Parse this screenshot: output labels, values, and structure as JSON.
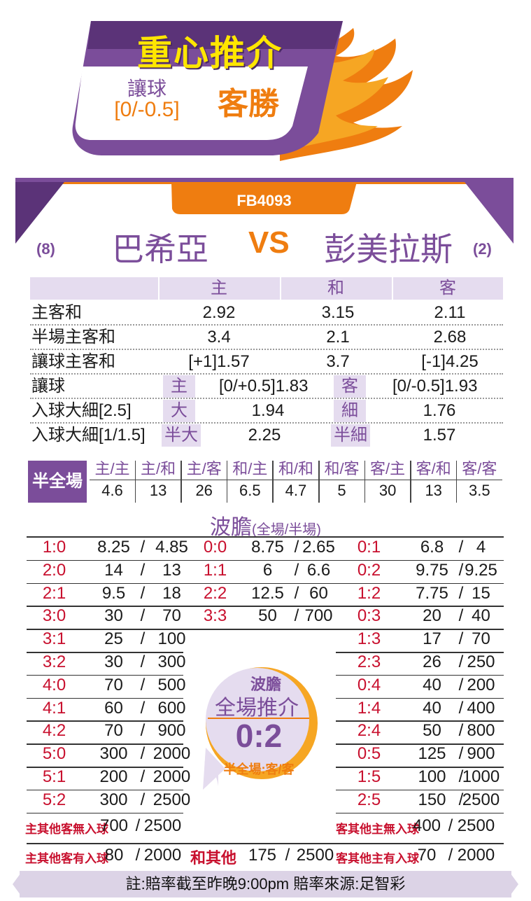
{
  "banner": {
    "title": "重心推介",
    "handicap_label": "讓球",
    "handicap_value": "[0/-0.5]",
    "pick": "客勝"
  },
  "match": {
    "code": "FB4093",
    "home_rank": "(8)",
    "home_team": "巴希亞",
    "vs": "VS",
    "away_team": "彭美拉斯",
    "away_rank": "(2)"
  },
  "odds": {
    "headers": [
      "主",
      "和",
      "客"
    ],
    "rows": [
      {
        "label": "主客和",
        "home": "2.92",
        "draw": "3.15",
        "away": "2.11"
      },
      {
        "label": "半場主客和",
        "home": "3.4",
        "draw": "2.1",
        "away": "2.68"
      },
      {
        "label": "讓球主客和",
        "home": "[+1]1.57",
        "draw": "3.7",
        "away": "[-1]4.25"
      }
    ],
    "handicap": {
      "label": "讓球",
      "tag1": "主",
      "val1": "[0/+0.5]1.83",
      "tag2": "客",
      "val2": "[0/-0.5]1.93"
    },
    "goals1": {
      "label": "入球大細[2.5]",
      "tag1": "大",
      "val1": "1.94",
      "tag2": "細",
      "val2": "1.76"
    },
    "goals2": {
      "label": "入球大細[1/1.5]",
      "tag1": "半大",
      "val1": "2.25",
      "tag2": "半細",
      "val2": "1.57"
    }
  },
  "half_full": {
    "label": "半全場",
    "items": [
      {
        "t": "主/主",
        "v": "4.6"
      },
      {
        "t": "主/和",
        "v": "13"
      },
      {
        "t": "主/客",
        "v": "26"
      },
      {
        "t": "和/主",
        "v": "6.5"
      },
      {
        "t": "和/和",
        "v": "4.7"
      },
      {
        "t": "和/客",
        "v": "5"
      },
      {
        "t": "客/主",
        "v": "30"
      },
      {
        "t": "客/和",
        "v": "13"
      },
      {
        "t": "客/客",
        "v": "3.5"
      }
    ]
  },
  "correct_score": {
    "title": "波膽",
    "subtitle": "(全場/半場)",
    "home_col": [
      {
        "s": "1:0",
        "a": "8.25",
        "b": "4.85"
      },
      {
        "s": "2:0",
        "a": "14",
        "b": "13"
      },
      {
        "s": "2:1",
        "a": "9.5",
        "b": "18"
      },
      {
        "s": "3:0",
        "a": "30",
        "b": "70"
      },
      {
        "s": "3:1",
        "a": "25",
        "b": "100"
      },
      {
        "s": "3:2",
        "a": "30",
        "b": "300"
      },
      {
        "s": "4:0",
        "a": "70",
        "b": "500"
      },
      {
        "s": "4:1",
        "a": "60",
        "b": "600"
      },
      {
        "s": "4:2",
        "a": "70",
        "b": "900"
      },
      {
        "s": "5:0",
        "a": "300",
        "b": "2000"
      },
      {
        "s": "5:1",
        "a": "200",
        "b": "2000"
      },
      {
        "s": "5:2",
        "a": "300",
        "b": "2500"
      }
    ],
    "draw_col": [
      {
        "s": "0:0",
        "a": "8.75",
        "b": "2.65"
      },
      {
        "s": "1:1",
        "a": "6",
        "b": "6.6"
      },
      {
        "s": "2:2",
        "a": "12.5",
        "b": "60"
      },
      {
        "s": "3:3",
        "a": "50",
        "b": "700"
      }
    ],
    "away_col": [
      {
        "s": "0:1",
        "a": "6.8",
        "b": "4"
      },
      {
        "s": "0:2",
        "a": "9.75",
        "b": "9.25"
      },
      {
        "s": "1:2",
        "a": "7.75",
        "b": "15"
      },
      {
        "s": "0:3",
        "a": "20",
        "b": "40"
      },
      {
        "s": "1:3",
        "a": "17",
        "b": "70"
      },
      {
        "s": "2:3",
        "a": "26",
        "b": "250"
      },
      {
        "s": "0:4",
        "a": "40",
        "b": "200"
      },
      {
        "s": "1:4",
        "a": "40",
        "b": "400"
      },
      {
        "s": "2:4",
        "a": "50",
        "b": "800"
      },
      {
        "s": "0:5",
        "a": "125",
        "b": "900"
      },
      {
        "s": "1:5",
        "a": "100",
        "b": "1000"
      },
      {
        "s": "2:5",
        "a": "150",
        "b": "2500"
      }
    ],
    "others": {
      "home_other_nil": {
        "label": "主其他客無入球",
        "a": "700",
        "b": "2500"
      },
      "away_other_nil": {
        "label": "客其他主無入球",
        "a": "400",
        "b": "2500"
      },
      "home_other_score": {
        "label": "主其他客有入球",
        "a": "80",
        "b": "2000"
      },
      "draw_other": {
        "label": "和其他",
        "a": "175",
        "b": "2500"
      },
      "away_other_score": {
        "label": "客其他主有入球",
        "a": "70",
        "b": "2000"
      }
    }
  },
  "recommendation": {
    "line1": "波膽",
    "line2": "全場推介",
    "score": "0:2",
    "half_full": "半全場:客/客"
  },
  "footer": "註:賠率截至昨晚9:00pm 賠率來源:足智彩",
  "colors": {
    "purple": "#7b4d9a",
    "orange": "#ef7d10",
    "red": "#c8102e",
    "yellow": "#ffe600"
  }
}
